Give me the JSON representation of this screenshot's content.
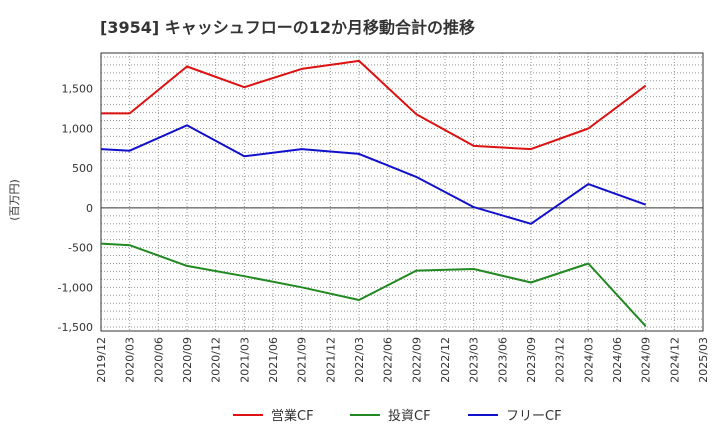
{
  "chart_data": {
    "type": "line",
    "title": "[3954]  キャッシュフローの12か月移動合計の推移",
    "ylabel": "(百万円)",
    "xlabel": "",
    "ylim": [
      -1550,
      1950
    ],
    "yticks": [
      1500,
      1000,
      500,
      0,
      -500,
      -1000,
      -1500
    ],
    "ytick_labels": [
      "1,500",
      "1,000",
      "500",
      "0",
      "-500",
      "-1,000",
      "-1,500"
    ],
    "categories": [
      "2019/12",
      "2020/03",
      "2020/06",
      "2020/09",
      "2020/12",
      "2021/03",
      "2021/06",
      "2021/09",
      "2021/12",
      "2022/03",
      "2022/06",
      "2022/09",
      "2022/12",
      "2023/03",
      "2023/06",
      "2023/09",
      "2023/12",
      "2024/03",
      "2024/06",
      "2024/09",
      "2024/12",
      "2025/03"
    ],
    "grid": true,
    "legend_position": "bottom",
    "series": [
      {
        "name": "営業CF",
        "color": "#dd1111",
        "points": [
          [
            "2019/12",
            1190
          ],
          [
            "2020/03",
            1190
          ],
          [
            "2020/09",
            1780
          ],
          [
            "2021/03",
            1520
          ],
          [
            "2021/09",
            1750
          ],
          [
            "2022/03",
            1850
          ],
          [
            "2022/09",
            1180
          ],
          [
            "2023/03",
            780
          ],
          [
            "2023/09",
            740
          ],
          [
            "2024/03",
            1000
          ],
          [
            "2024/09",
            1540
          ]
        ]
      },
      {
        "name": "投資CF",
        "color": "#228822",
        "points": [
          [
            "2019/12",
            -450
          ],
          [
            "2020/03",
            -470
          ],
          [
            "2020/09",
            -730
          ],
          [
            "2021/03",
            -860
          ],
          [
            "2021/09",
            -1000
          ],
          [
            "2022/03",
            -1160
          ],
          [
            "2022/09",
            -790
          ],
          [
            "2023/03",
            -770
          ],
          [
            "2023/09",
            -940
          ],
          [
            "2024/03",
            -700
          ],
          [
            "2024/09",
            -1490
          ]
        ]
      },
      {
        "name": "フリーCF",
        "color": "#1111cc",
        "points": [
          [
            "2019/12",
            740
          ],
          [
            "2020/03",
            720
          ],
          [
            "2020/09",
            1040
          ],
          [
            "2021/03",
            650
          ],
          [
            "2021/09",
            740
          ],
          [
            "2022/03",
            680
          ],
          [
            "2022/09",
            390
          ],
          [
            "2023/03",
            10
          ],
          [
            "2023/09",
            -200
          ],
          [
            "2024/03",
            300
          ],
          [
            "2024/09",
            40
          ]
        ]
      }
    ]
  }
}
